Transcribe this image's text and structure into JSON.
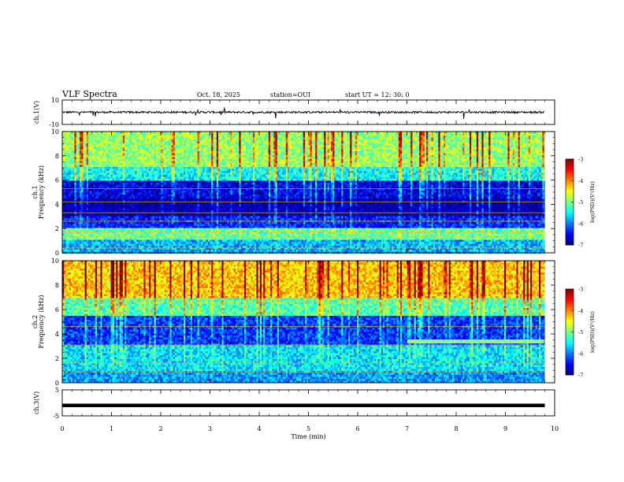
{
  "header": {
    "title": "VLF Spectra",
    "date": "Oct. 18, 2025",
    "station": "station=OUI",
    "start": "start UT =  12: 30: 0"
  },
  "chart_data": [
    {
      "type": "line",
      "name": "ch1-waveform",
      "ylabel": "ch.1(V)",
      "ylim": [
        -10,
        10
      ],
      "yticks": [
        "10",
        "-10"
      ],
      "xlim": [
        0,
        10
      ],
      "baseline_value": 0,
      "trace_end_min": 9.8
    },
    {
      "type": "heatmap",
      "name": "ch1-spectrogram",
      "ylabel_channel": "ch.1",
      "ylabel": "Frequency (kHz)",
      "xlim": [
        0,
        10
      ],
      "ylim": [
        0,
        10
      ],
      "yticks": [
        "0",
        "2",
        "4",
        "6",
        "8",
        "10"
      ],
      "data_end_min": 9.8,
      "colorbar": {
        "label": "log(PSD)(V²/Hz)",
        "range": [
          -7,
          -3
        ],
        "ticks": [
          "-3",
          "-4",
          "-5",
          "-6",
          "-7"
        ]
      },
      "bands": [
        {
          "from_khz": 0,
          "to_khz": 1,
          "level": -5.8
        },
        {
          "from_khz": 1,
          "to_khz": 2,
          "level": -5.1
        },
        {
          "from_khz": 2,
          "to_khz": 3,
          "level": -6.4
        },
        {
          "from_khz": 3,
          "to_khz": 4.5,
          "level": -6.9
        },
        {
          "from_khz": 4.5,
          "to_khz": 6,
          "level": -6.6
        },
        {
          "from_khz": 6,
          "to_khz": 7,
          "level": -5.5
        },
        {
          "from_khz": 7,
          "to_khz": 10,
          "level": -4.9
        }
      ],
      "tones_khz": [
        0.4,
        1.3,
        1.7,
        2.6,
        3.3,
        4.2,
        5.3,
        7.0
      ]
    },
    {
      "type": "heatmap",
      "name": "ch2-spectrogram",
      "ylabel_channel": "ch.2",
      "ylabel": "Frequency (kHz)",
      "xlim": [
        0,
        10
      ],
      "ylim": [
        0,
        10
      ],
      "yticks": [
        "0",
        "2",
        "4",
        "6",
        "8",
        "10"
      ],
      "data_end_min": 9.8,
      "colorbar": {
        "label": "log(PSD)(V²/Hz)",
        "range": [
          -7,
          -3
        ],
        "ticks": [
          "-3",
          "-4",
          "-5",
          "-6",
          "-7"
        ]
      },
      "bands": [
        {
          "from_khz": 0,
          "to_khz": 1,
          "level": -5.9
        },
        {
          "from_khz": 1,
          "to_khz": 3,
          "level": -5.6
        },
        {
          "from_khz": 3,
          "to_khz": 5.5,
          "level": -6.3
        },
        {
          "from_khz": 5.5,
          "to_khz": 7,
          "level": -5.2
        },
        {
          "from_khz": 7,
          "to_khz": 10,
          "level": -4.3
        }
      ],
      "tones_khz": [
        0.9,
        1.6,
        3.1,
        4.6,
        6.7
      ],
      "event": {
        "from_min": 7.0,
        "to_min": 9.8,
        "from_khz": 3.2,
        "to_khz": 3.6,
        "level": -4.9
      }
    },
    {
      "type": "line",
      "name": "ch3-waveform",
      "ylabel": "ch.3(V)",
      "ylim": [
        -5,
        5
      ],
      "yticks": [
        "5",
        "-5"
      ],
      "xlim": [
        0,
        10
      ],
      "baseline_value": -1,
      "trace_end_min": 9.8
    }
  ],
  "xaxis": {
    "label": "Time (min)",
    "ticks": [
      "0",
      "1",
      "2",
      "3",
      "4",
      "5",
      "6",
      "7",
      "8",
      "9",
      "10"
    ]
  }
}
